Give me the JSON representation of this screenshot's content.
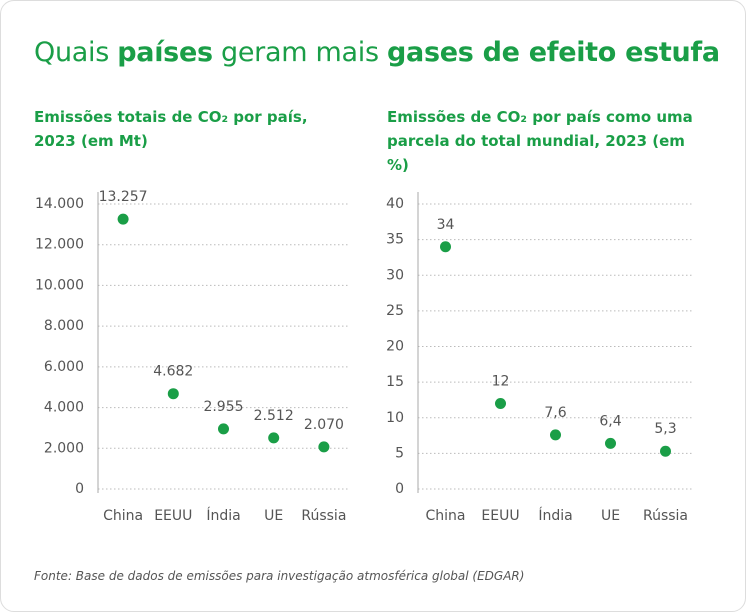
{
  "header": {
    "title_parts": [
      {
        "text": "Quais ",
        "bold": false
      },
      {
        "text": "países",
        "bold": true
      },
      {
        "text": " geram mais ",
        "bold": false
      },
      {
        "text": "gases de efeito estufa",
        "bold": true
      }
    ]
  },
  "chart_data": [
    {
      "type": "scatter",
      "subtitle": "Emissões totais de CO₂ por país, 2023 (em Mt)",
      "categories": [
        "China",
        "EEUU",
        "Índia",
        "UE",
        "Rússia"
      ],
      "values": [
        13257,
        4682,
        2955,
        2512,
        2070
      ],
      "value_labels": [
        "13.257",
        "4.682",
        "2.955",
        "2.512",
        "2.070"
      ],
      "color": "#1a9e47",
      "ylim": [
        0,
        14000
      ],
      "yticks": [
        0,
        {
          "value": 2000,
          "label": "2.000"
        },
        {
          "value": 4000,
          "label": "4.000"
        },
        {
          "value": 6000,
          "label": "6.000"
        },
        {
          "value": 8000,
          "label": "8.000"
        },
        {
          "value": 10000,
          "label": "10.000"
        },
        {
          "value": 12000,
          "label": "12.000"
        },
        {
          "value": 14000,
          "label": "14.000"
        }
      ],
      "grid": true
    },
    {
      "type": "scatter",
      "subtitle": "Emissões de CO₂ por país como uma parcela do total mundial, 2023 (em %)",
      "categories": [
        "China",
        "EEUU",
        "Índia",
        "UE",
        "Rússia"
      ],
      "values": [
        34,
        12,
        7.6,
        6.4,
        5.3
      ],
      "value_labels": [
        "34",
        "12",
        "7,6",
        "6,4",
        "5,3"
      ],
      "color": "#1a9e47",
      "ylim": [
        0,
        40
      ],
      "yticks": [
        0,
        5,
        10,
        15,
        20,
        25,
        30,
        35,
        40
      ],
      "grid": true
    }
  ],
  "source": "Fonte: Base de dados de emissões para investigação atmosférica global (EDGAR)"
}
